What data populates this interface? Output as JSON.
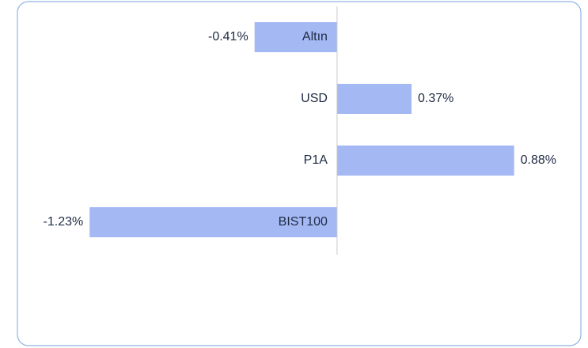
{
  "chart_data": {
    "type": "bar",
    "orientation": "horizontal",
    "categories": [
      "Altın",
      "USD",
      "P1A",
      "BIST100"
    ],
    "values": [
      -0.41,
      0.37,
      0.88,
      -1.23
    ],
    "value_labels": [
      "-0.41%",
      "0.37%",
      "0.88%",
      "-1.23%"
    ],
    "color": "#a4b8f4",
    "xlim": [
      -1.4,
      1.2
    ],
    "grid": false
  }
}
